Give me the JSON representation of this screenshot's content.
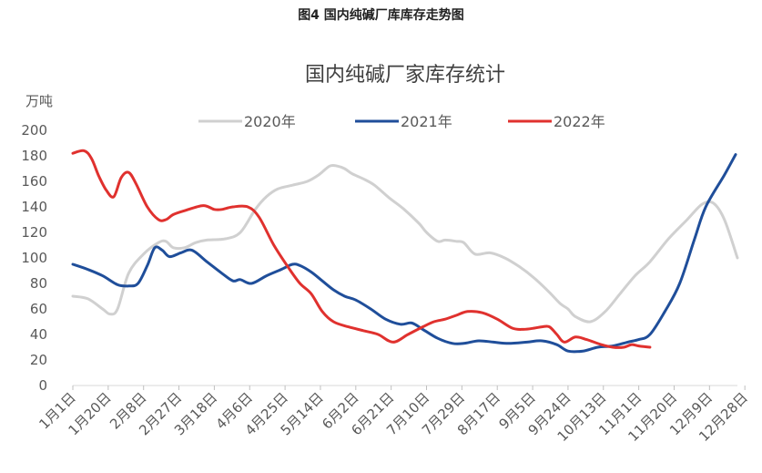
{
  "figure_caption": "图4  国内纯碱厂库库存走势图",
  "chart_data": {
    "type": "line",
    "title": "国内纯碱厂家库存统计",
    "ylabel": "万吨",
    "xlabel": "",
    "ylim": [
      0,
      200
    ],
    "yticks": [
      0,
      20,
      40,
      60,
      80,
      100,
      120,
      140,
      160,
      180,
      200
    ],
    "x_range": [
      0,
      357
    ],
    "categories": [
      "1月1日",
      "1月20日",
      "2月8日",
      "2月27日",
      "3月18日",
      "4月6日",
      "4月25日",
      "5月14日",
      "6月2日",
      "6月21日",
      "7月10日",
      "7月29日",
      "8月17日",
      "9月5日",
      "9月24日",
      "10月13日",
      "11月1日",
      "11月20日",
      "12月9日",
      "12月28日"
    ],
    "category_days": [
      0,
      19,
      38,
      57,
      76,
      95,
      114,
      133,
      152,
      171,
      190,
      209,
      228,
      247,
      266,
      285,
      304,
      323,
      342,
      361
    ],
    "legend_position": "top-center",
    "series": [
      {
        "name": "2020年",
        "color": "#d0d0d0",
        "x": [
          0,
          8,
          16,
          20,
          24,
          30,
          38,
          46,
          50,
          54,
          60,
          66,
          72,
          82,
          90,
          98,
          104,
          110,
          118,
          126,
          132,
          138,
          142,
          146,
          150,
          156,
          162,
          170,
          178,
          186,
          190,
          196,
          200,
          206,
          210,
          216,
          224,
          232,
          240,
          248,
          256,
          262,
          266,
          270,
          278,
          286,
          294,
          302,
          310,
          320,
          330,
          338,
          344,
          350,
          357
        ],
        "values": [
          70,
          68,
          60,
          56,
          60,
          88,
          103,
          112,
          113,
          108,
          108,
          112,
          114,
          115,
          120,
          138,
          148,
          154,
          157,
          160,
          165,
          172,
          172,
          170,
          166,
          162,
          157,
          147,
          138,
          127,
          120,
          113,
          114,
          113,
          112,
          103,
          104,
          100,
          93,
          84,
          73,
          64,
          60,
          54,
          50,
          58,
          72,
          86,
          97,
          115,
          130,
          142,
          143,
          130,
          100
        ]
      },
      {
        "name": "2021年",
        "color": "#1f4e9a",
        "x": [
          0,
          8,
          16,
          24,
          30,
          35,
          40,
          44,
          48,
          52,
          58,
          64,
          72,
          80,
          86,
          90,
          96,
          104,
          112,
          118,
          122,
          128,
          134,
          140,
          146,
          152,
          160,
          168,
          176,
          182,
          188,
          196,
          204,
          210,
          218,
          226,
          234,
          244,
          252,
          260,
          266,
          274,
          282,
          290,
          298,
          304,
          310,
          318,
          326,
          334,
          340,
          350,
          356
        ],
        "values": [
          95,
          91,
          86,
          79,
          78,
          80,
          94,
          108,
          106,
          101,
          104,
          106,
          97,
          88,
          82,
          83,
          80,
          86,
          91,
          95,
          94,
          89,
          82,
          75,
          70,
          67,
          60,
          52,
          48,
          49,
          44,
          37,
          33,
          33,
          35,
          34,
          33,
          34,
          35,
          32,
          27,
          27,
          30,
          31,
          34,
          36,
          40,
          58,
          80,
          115,
          140,
          165,
          181
        ]
      },
      {
        "name": "2022年",
        "color": "#e0312e",
        "x": [
          0,
          6,
          10,
          14,
          18,
          22,
          26,
          30,
          34,
          40,
          46,
          50,
          54,
          60,
          70,
          76,
          80,
          86,
          94,
          100,
          108,
          116,
          122,
          128,
          134,
          140,
          148,
          156,
          164,
          172,
          180,
          188,
          194,
          200,
          206,
          212,
          220,
          228,
          236,
          242,
          248,
          252,
          256,
          260,
          264,
          270,
          276,
          284,
          290,
          296,
          300,
          304,
          310
        ],
        "values": [
          182,
          184,
          178,
          164,
          153,
          148,
          163,
          167,
          158,
          140,
          130,
          130,
          134,
          137,
          141,
          138,
          138,
          140,
          140,
          132,
          110,
          92,
          80,
          72,
          58,
          50,
          46,
          43,
          40,
          34,
          40,
          46,
          50,
          52,
          55,
          58,
          57,
          52,
          45,
          44,
          45,
          46,
          46,
          40,
          34,
          38,
          36,
          32,
          30,
          30,
          32,
          31,
          30
        ]
      }
    ]
  }
}
